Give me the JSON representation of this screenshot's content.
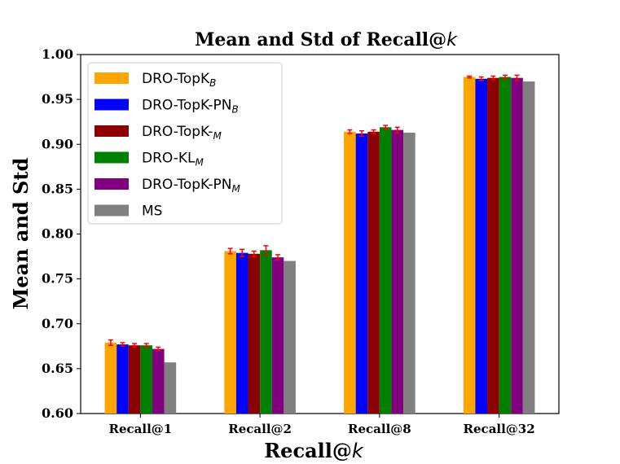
{
  "chart_data": {
    "type": "bar",
    "title": "Mean and Std of Recall@",
    "title_italic": "k",
    "xlabel": "Recall@",
    "xlabel_italic": "k",
    "ylabel": "Mean and Std",
    "ylim": [
      0.6,
      1.0
    ],
    "yticks": [
      "0.60",
      "0.65",
      "0.70",
      "0.75",
      "0.80",
      "0.85",
      "0.90",
      "0.95",
      "1.00"
    ],
    "categories": [
      "Recall@1",
      "Recall@2",
      "Recall@8",
      "Recall@32"
    ],
    "legend_position": "upper-left",
    "series": [
      {
        "name": "DRO-TopK",
        "sub": "B",
        "color": "#ffa500",
        "values": [
          0.679,
          0.781,
          0.914,
          0.975
        ],
        "errors": [
          0.003,
          0.003,
          0.002,
          0.001
        ]
      },
      {
        "name": "DRO-TopK-PN",
        "sub": "B",
        "color": "#0000ff",
        "values": [
          0.677,
          0.779,
          0.912,
          0.973
        ],
        "errors": [
          0.002,
          0.004,
          0.003,
          0.002
        ]
      },
      {
        "name": "DRO-TopK-",
        "sub": "M",
        "color": "#8b0000",
        "values": [
          0.676,
          0.778,
          0.914,
          0.974
        ],
        "errors": [
          0.002,
          0.003,
          0.002,
          0.002
        ]
      },
      {
        "name": "DRO-KL",
        "sub": "M",
        "color": "#008000",
        "values": [
          0.676,
          0.782,
          0.919,
          0.975
        ],
        "errors": [
          0.002,
          0.005,
          0.002,
          0.002
        ]
      },
      {
        "name": "DRO-TopK-PN",
        "sub": "M",
        "color": "#800080",
        "values": [
          0.672,
          0.774,
          0.916,
          0.974
        ],
        "errors": [
          0.002,
          0.003,
          0.003,
          0.003
        ]
      },
      {
        "name": "MS",
        "sub": "",
        "color": "#808080",
        "values": [
          0.657,
          0.77,
          0.913,
          0.97
        ],
        "errors": [
          0,
          0,
          0,
          0
        ]
      }
    ],
    "error_bar_color": "#ff0000"
  }
}
